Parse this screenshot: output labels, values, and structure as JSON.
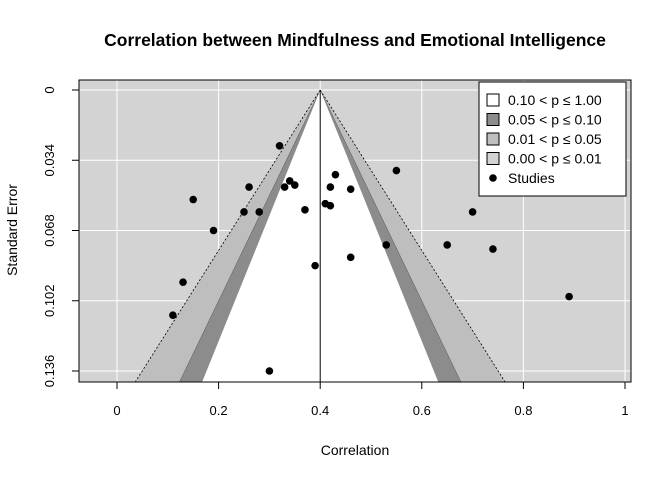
{
  "chart_data": {
    "type": "scatter",
    "subtype": "contour-enhanced funnel plot",
    "title": "Correlation between Mindfulness and Emotional Intelligence",
    "xlabel": "Correlation",
    "ylabel": "Standard Error",
    "xlim": [
      0,
      1
    ],
    "ylim": [
      0.136,
      0
    ],
    "y_reversed": true,
    "x_ticks": [
      0,
      0.2,
      0.4,
      0.6,
      0.8,
      1
    ],
    "x_tick_labels": [
      "0",
      "0.2",
      "0.4",
      "0.6",
      "0.8",
      "1"
    ],
    "y_ticks": [
      0,
      0.034,
      0.068,
      0.102,
      0.136
    ],
    "y_tick_labels": [
      "0",
      "0.034",
      "0.068",
      "0.102",
      "0.136"
    ],
    "center_estimate": 0.4,
    "grid": true,
    "legend_position": "top-right",
    "legend": [
      {
        "label": "0.10 < p ≤ 1.00",
        "color": "#ffffff",
        "kind": "box"
      },
      {
        "label": "0.05 < p ≤ 0.10",
        "color": "#8c8c8c",
        "kind": "box"
      },
      {
        "label": "0.01 < p ≤ 0.05",
        "color": "#bebebe",
        "kind": "box"
      },
      {
        "label": "0.00 < p ≤ 0.01",
        "color": "#d3d3d3",
        "kind": "box"
      },
      {
        "label": "Studies",
        "color": "#000000",
        "kind": "point"
      }
    ],
    "contour_colors": {
      "p_0_01": "#d3d3d3",
      "p_0_01_0_05": "#bebebe",
      "p_0_05_0_10": "#8c8c8c",
      "p_0_10_1_00": "#ffffff"
    },
    "studies": [
      {
        "x": 0.32,
        "y": 0.027
      },
      {
        "x": 0.15,
        "y": 0.053
      },
      {
        "x": 0.26,
        "y": 0.047
      },
      {
        "x": 0.34,
        "y": 0.044
      },
      {
        "x": 0.35,
        "y": 0.046
      },
      {
        "x": 0.33,
        "y": 0.047
      },
      {
        "x": 0.43,
        "y": 0.041
      },
      {
        "x": 0.42,
        "y": 0.047
      },
      {
        "x": 0.46,
        "y": 0.048
      },
      {
        "x": 0.55,
        "y": 0.039
      },
      {
        "x": 0.41,
        "y": 0.055
      },
      {
        "x": 0.42,
        "y": 0.056
      },
      {
        "x": 0.37,
        "y": 0.058
      },
      {
        "x": 0.25,
        "y": 0.059
      },
      {
        "x": 0.28,
        "y": 0.059
      },
      {
        "x": 0.19,
        "y": 0.068
      },
      {
        "x": 0.7,
        "y": 0.059
      },
      {
        "x": 0.65,
        "y": 0.075
      },
      {
        "x": 0.74,
        "y": 0.077
      },
      {
        "x": 0.53,
        "y": 0.075
      },
      {
        "x": 0.46,
        "y": 0.081
      },
      {
        "x": 0.39,
        "y": 0.085
      },
      {
        "x": 0.13,
        "y": 0.093
      },
      {
        "x": 0.89,
        "y": 0.1
      },
      {
        "x": 0.11,
        "y": 0.109
      },
      {
        "x": 0.3,
        "y": 0.136
      }
    ]
  }
}
